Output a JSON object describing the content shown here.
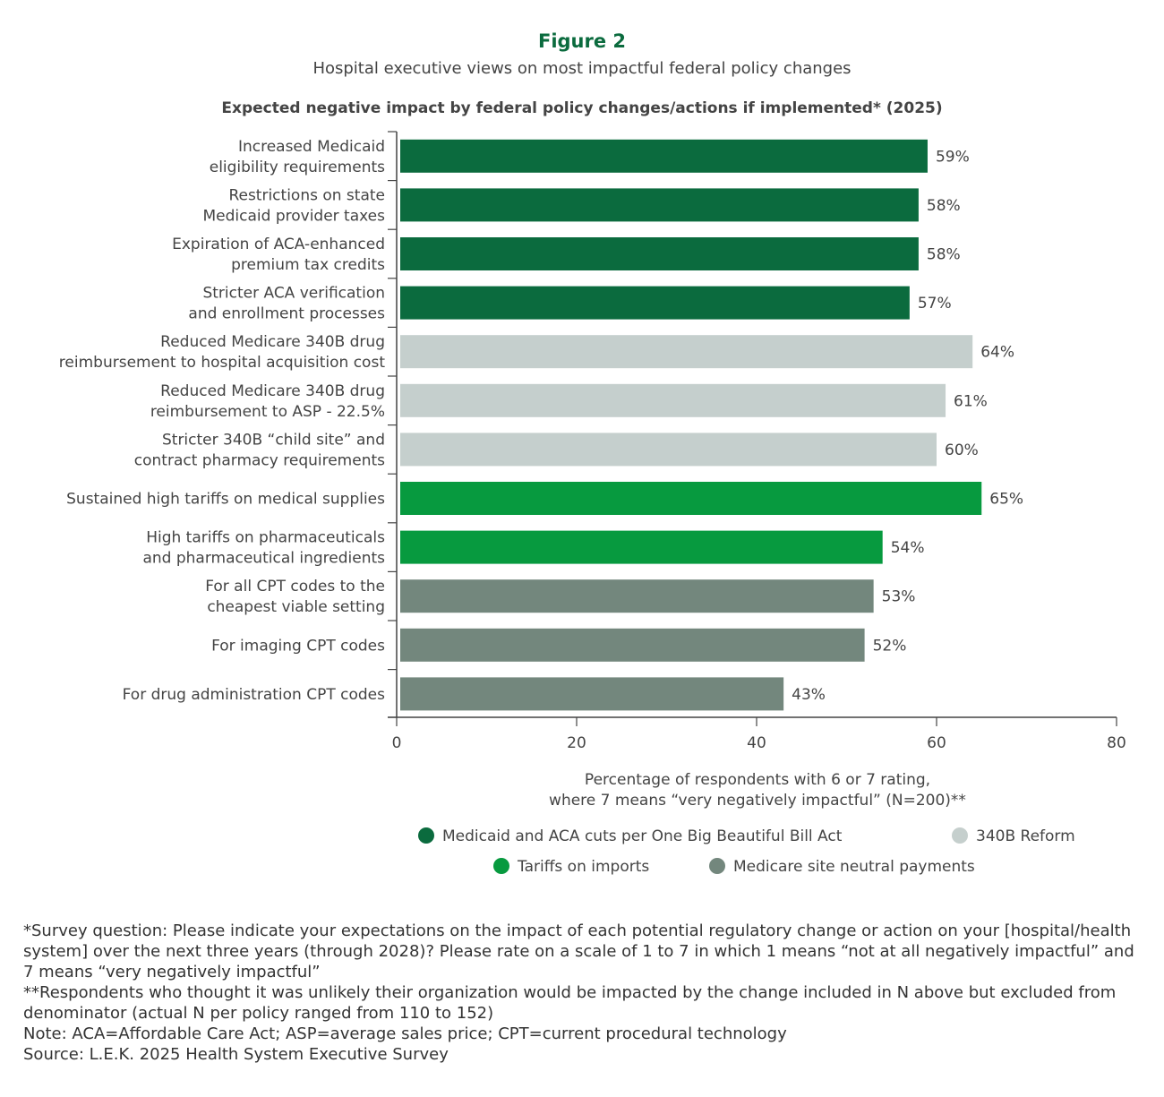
{
  "figure_label": "Figure 2",
  "figure_subtitle": "Hospital executive views on most impactful federal policy changes",
  "chart_data": {
    "type": "bar",
    "orientation": "horizontal",
    "title": "Expected negative impact by federal policy changes/actions if implemented* (2025)",
    "xlabel": [
      "Percentage of respondents with 6 or 7 rating,",
      "where 7 means “very negatively impactful” (N=200)**"
    ],
    "xlim": [
      0,
      80
    ],
    "xticks": [
      0,
      20,
      40,
      60,
      80
    ],
    "grid": false,
    "legend_placement": "bottom",
    "groups": [
      {
        "name": "Medicaid and ACA cuts per One Big Beautiful Bill Act",
        "color": "#0b6b3e"
      },
      {
        "name": "340B Reform",
        "color": "#c5cfcd"
      },
      {
        "name": "Tariffs on imports",
        "color": "#079a3f"
      },
      {
        "name": "Medicare site neutral payments",
        "color": "#73877d"
      }
    ],
    "bars": [
      {
        "label": [
          "Increased Medicaid",
          "eligibility requirements"
        ],
        "value": 59,
        "group": 0,
        "data_label": "59%"
      },
      {
        "label": [
          "Restrictions on state",
          "Medicaid provider taxes"
        ],
        "value": 58,
        "group": 0,
        "data_label": "58%"
      },
      {
        "label": [
          "Expiration of ACA-enhanced",
          "premium tax credits"
        ],
        "value": 58,
        "group": 0,
        "data_label": "58%"
      },
      {
        "label": [
          "Stricter ACA verification",
          "and enrollment processes"
        ],
        "value": 57,
        "group": 0,
        "data_label": "57%"
      },
      {
        "label": [
          "Reduced Medicare 340B drug",
          "reimbursement to hospital acquisition cost"
        ],
        "value": 64,
        "group": 1,
        "data_label": "64%"
      },
      {
        "label": [
          "Reduced Medicare 340B drug",
          "reimbursement to ASP - 22.5%"
        ],
        "value": 61,
        "group": 1,
        "data_label": "61%"
      },
      {
        "label": [
          "Stricter 340B “child site” and",
          "contract pharmacy requirements"
        ],
        "value": 60,
        "group": 1,
        "data_label": "60%"
      },
      {
        "label": [
          "Sustained high tariffs on medical supplies"
        ],
        "value": 65,
        "group": 2,
        "data_label": "65%"
      },
      {
        "label": [
          "High tariffs on pharmaceuticals",
          "and pharmaceutical ingredients"
        ],
        "value": 54,
        "group": 2,
        "data_label": "54%"
      },
      {
        "label": [
          "For all CPT codes to the",
          "cheapest viable setting"
        ],
        "value": 53,
        "group": 3,
        "data_label": "53%"
      },
      {
        "label": [
          "For imaging CPT codes"
        ],
        "value": 52,
        "group": 3,
        "data_label": "52%"
      },
      {
        "label": [
          "For drug administration CPT codes"
        ],
        "value": 43,
        "group": 3,
        "data_label": "43%"
      }
    ]
  },
  "notes": [
    "*Survey question: Please indicate your expectations on the impact of each potential regulatory change or action on your [hospital/health system] over the next three years (through 2028)? Please rate on a scale of 1 to 7 in which 1 means “not at all negatively impactful” and 7 means “very negatively impactful”",
    "**Respondents who thought it was unlikely their organization would be impacted by the change included in N above but excluded from denominator (actual N per policy ranged from 110 to 152)",
    "Note: ACA=Affordable Care Act; ASP=average sales price; CPT=current procedural technology",
    "Source: L.E.K. 2025 Health System Executive Survey"
  ]
}
